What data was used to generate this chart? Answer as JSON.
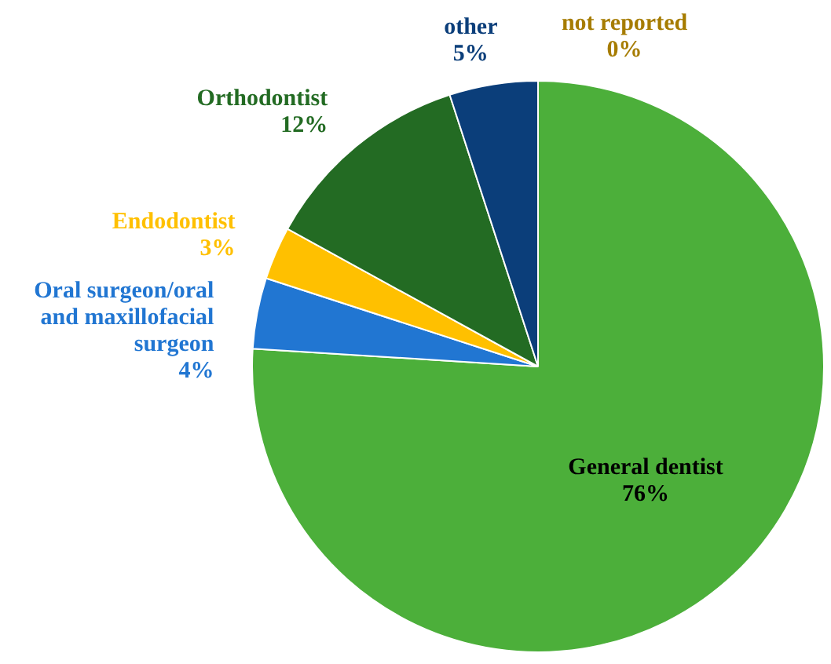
{
  "chart_data": {
    "type": "pie",
    "categories": [
      "General dentist",
      "Oral surgeon/oral and maxillofacial surgeon",
      "Endodontist",
      "Orthodontist",
      "other",
      "not reported"
    ],
    "values": [
      76,
      4,
      3,
      12,
      5,
      0
    ],
    "value_labels": [
      "76%",
      "4%",
      "3%",
      "12%",
      "5%",
      "0%"
    ],
    "colors": [
      "#4caf3a",
      "#2176d2",
      "#ffc000",
      "#236b23",
      "#0b3e7a",
      "#a67c00"
    ],
    "legend": false
  }
}
